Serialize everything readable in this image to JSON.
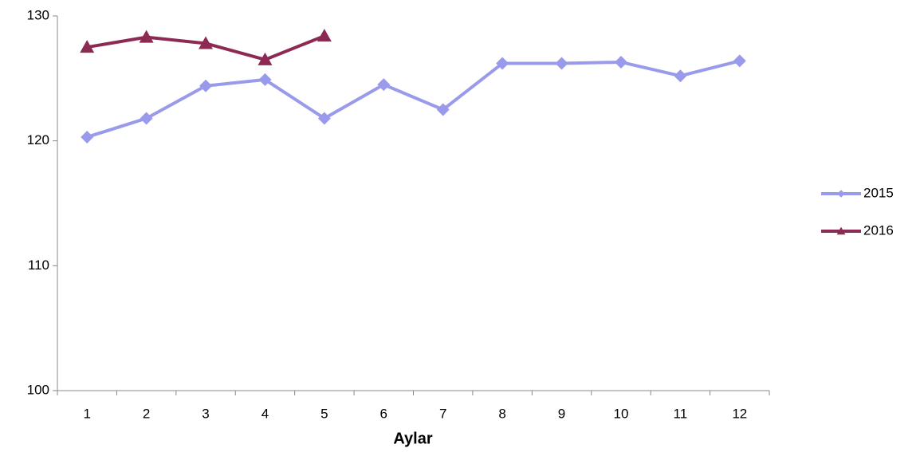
{
  "chart_data": {
    "type": "line",
    "x_label": "Aylar",
    "categories": [
      "1",
      "2",
      "3",
      "4",
      "5",
      "6",
      "7",
      "8",
      "9",
      "10",
      "11",
      "12"
    ],
    "series": [
      {
        "name": "2015",
        "color": "#9a9aec",
        "marker": "diamond",
        "values": [
          120.3,
          121.8,
          124.4,
          124.9,
          121.8,
          124.5,
          122.5,
          126.2,
          126.2,
          126.3,
          125.2,
          126.4
        ]
      },
      {
        "name": "2016",
        "color": "#8c2a54",
        "marker": "triangle",
        "values": [
          127.5,
          128.3,
          127.8,
          126.5,
          128.4,
          null,
          null,
          null,
          null,
          null,
          null,
          null
        ]
      }
    ],
    "ylim": [
      100,
      130
    ],
    "yticks": [
      100,
      110,
      120,
      130
    ],
    "grid": false,
    "legend": "right"
  }
}
